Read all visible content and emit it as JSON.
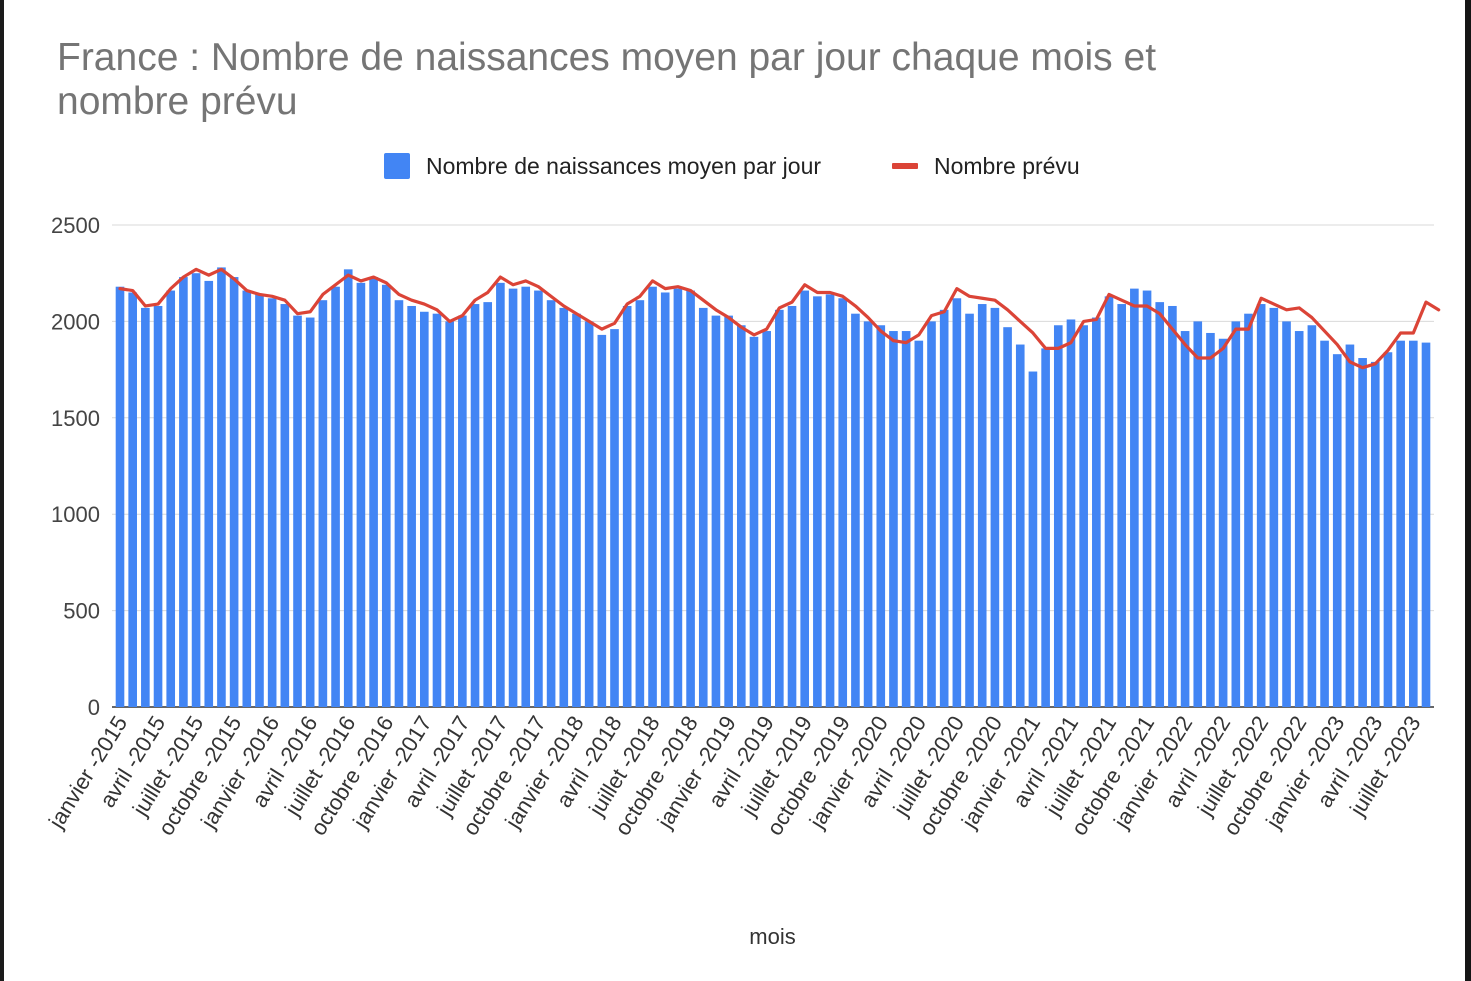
{
  "chart_data": {
    "type": "bar",
    "title": "France : Nombre de naissances moyen par jour chaque mois et nombre prévu",
    "xlabel": "mois",
    "ylabel": "",
    "ylim": [
      0,
      2500
    ],
    "yticks": [
      "0",
      "500",
      "1000",
      "1500",
      "2000",
      "2500"
    ],
    "grid": true,
    "legend_position": "top",
    "colors": {
      "bars": "#4285f4",
      "line": "#db4437"
    },
    "x_tick_labels": [
      "janvier -2015",
      "avril -2015",
      "juillet -2015",
      "octobre -2015",
      "janvier -2016",
      "avril -2016",
      "juillet -2016",
      "octobre -2016",
      "janvier -2017",
      "avril -2017",
      "juillet -2017",
      "octobre -2017",
      "janvier -2018",
      "avril -2018",
      "juillet -2018",
      "octobre -2018",
      "janvier -2019",
      "avril -2019",
      "juillet -2019",
      "octobre -2019",
      "janvier -2020",
      "avril -2020",
      "juillet -2020",
      "octobre -2020",
      "janvier -2021",
      "avril -2021",
      "juillet -2021",
      "octobre -2021",
      "janvier -2022",
      "avril -2022",
      "juillet -2022",
      "octobre -2022",
      "janvier -2023",
      "avril -2023",
      "juillet -2023"
    ],
    "series": [
      {
        "name": "Nombre de naissances moyen par jour",
        "type": "bar",
        "values": [
          2180,
          2150,
          2070,
          2080,
          2160,
          2230,
          2250,
          2210,
          2280,
          2230,
          2160,
          2140,
          2120,
          2090,
          2030,
          2020,
          2110,
          2180,
          2270,
          2200,
          2230,
          2190,
          2110,
          2080,
          2050,
          2040,
          2000,
          2030,
          2090,
          2100,
          2200,
          2170,
          2180,
          2160,
          2110,
          2070,
          2040,
          2000,
          1930,
          1960,
          2080,
          2110,
          2180,
          2150,
          2170,
          2160,
          2070,
          2030,
          2030,
          1980,
          1920,
          1950,
          2060,
          2080,
          2160,
          2130,
          2140,
          2120,
          2040,
          2000,
          1980,
          1950,
          1950,
          1900,
          2000,
          2060,
          2120,
          2040,
          2090,
          2070,
          1970,
          1880,
          1740,
          1860,
          1980,
          2010,
          1980,
          2020,
          2130,
          2090,
          2170,
          2160,
          2100,
          2080,
          1950,
          2000,
          1940,
          1910,
          2000,
          2040,
          2090,
          2070,
          2000,
          1950,
          1980,
          1900,
          1830,
          1880,
          1810,
          1790,
          1840,
          1900,
          1900,
          1890
        ]
      },
      {
        "name": "Nombre prévu",
        "type": "line",
        "values": [
          2170,
          2160,
          2080,
          2090,
          2170,
          2230,
          2270,
          2240,
          2270,
          2220,
          2160,
          2140,
          2130,
          2110,
          2040,
          2050,
          2140,
          2190,
          2240,
          2210,
          2230,
          2200,
          2140,
          2110,
          2090,
          2060,
          2000,
          2030,
          2110,
          2150,
          2230,
          2190,
          2210,
          2180,
          2130,
          2080,
          2040,
          2000,
          1960,
          1990,
          2090,
          2130,
          2210,
          2170,
          2180,
          2160,
          2110,
          2060,
          2020,
          1970,
          1930,
          1960,
          2070,
          2100,
          2190,
          2150,
          2150,
          2130,
          2080,
          2020,
          1950,
          1900,
          1890,
          1930,
          2030,
          2050,
          2170,
          2130,
          2120,
          2110,
          2060,
          2000,
          1940,
          1860,
          1860,
          1890,
          2000,
          2010,
          2140,
          2110,
          2080,
          2080,
          2040,
          1960,
          1880,
          1810,
          1810,
          1860,
          1960,
          1960,
          2120,
          2090,
          2060,
          2070,
          2020,
          1950,
          1880,
          1790,
          1760,
          1780,
          1850,
          1940,
          1940,
          2100,
          2060
        ]
      }
    ]
  }
}
